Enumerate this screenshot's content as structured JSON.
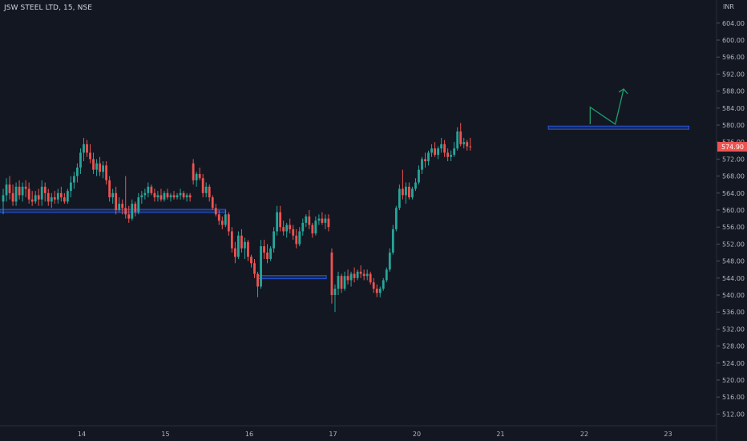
{
  "header": {
    "symbol": "JSW STEEL LTD",
    "interval": "15",
    "exchange": "NSE"
  },
  "colors": {
    "background": "#131722",
    "up": "#26a69a",
    "down": "#ef5350",
    "axis_text": "#b2b5be",
    "zone_line": "#2962ff",
    "arrow": "#1e9e6e",
    "price_tag": "#ef5350"
  },
  "chart_data": {
    "type": "candlestick",
    "currency_label": "INR",
    "last_price": "574.90",
    "ylim": [
      510,
      606
    ],
    "y_ticks": [
      "512.00",
      "516.00",
      "520.00",
      "524.00",
      "528.00",
      "532.00",
      "536.00",
      "540.00",
      "544.00",
      "548.00",
      "552.00",
      "556.00",
      "560.00",
      "564.00",
      "568.00",
      "572.00",
      "576.00",
      "580.00",
      "584.00",
      "588.00",
      "592.00",
      "596.00",
      "600.00",
      "604.00"
    ],
    "x_labels": [
      {
        "label": "14",
        "session": 0
      },
      {
        "label": "15",
        "session": 1
      },
      {
        "label": "16",
        "session": 2
      },
      {
        "label": "17",
        "session": 3
      },
      {
        "label": "20",
        "session": 4
      },
      {
        "label": "21",
        "session": 5
      },
      {
        "label": "22",
        "session": 6
      },
      {
        "label": "23",
        "session": 7
      }
    ],
    "levels": [
      {
        "price": 559.8,
        "from_session": -0.98,
        "to_session": 1.72
      },
      {
        "price": 544.2,
        "from_session": 2.1,
        "to_session": 2.92
      },
      {
        "price": 579.4,
        "from_session": 5.57,
        "to_session": 7.25
      }
    ],
    "arrow_path": [
      [
        6.07,
        580.2
      ],
      [
        6.07,
        584.2
      ],
      [
        6.37,
        580.2
      ],
      [
        6.47,
        588.5
      ]
    ],
    "candles": [
      [
        562.0,
        565.0,
        559.0,
        563.5
      ],
      [
        563.5,
        567.5,
        562.0,
        566.0
      ],
      [
        566.0,
        568.0,
        562.5,
        564.0
      ],
      [
        564.0,
        566.0,
        561.0,
        562.0
      ],
      [
        562.0,
        566.5,
        561.0,
        565.5
      ],
      [
        565.5,
        567.0,
        562.5,
        563.5
      ],
      [
        563.5,
        566.5,
        562.0,
        565.5
      ],
      [
        565.5,
        567.0,
        563.0,
        565.0
      ],
      [
        565.0,
        566.5,
        561.5,
        562.5
      ],
      [
        562.5,
        564.5,
        561.0,
        562.0
      ],
      [
        562.0,
        564.5,
        561.5,
        563.5
      ],
      [
        563.5,
        565.0,
        561.0,
        562.5
      ],
      [
        562.5,
        567.0,
        561.0,
        565.5
      ],
      [
        565.5,
        566.5,
        562.0,
        564.0
      ],
      [
        564.0,
        565.0,
        561.0,
        562.0
      ],
      [
        562.0,
        564.0,
        560.5,
        563.0
      ],
      [
        563.0,
        564.5,
        561.5,
        562.5
      ],
      [
        562.5,
        565.0,
        561.5,
        564.0
      ],
      [
        564.0,
        565.5,
        562.0,
        563.0
      ],
      [
        563.0,
        564.0,
        561.5,
        562.0
      ],
      [
        562.0,
        565.0,
        561.5,
        564.5
      ],
      [
        564.5,
        568.0,
        563.0,
        566.5
      ],
      [
        566.5,
        569.0,
        565.0,
        568.0
      ],
      [
        568.0,
        571.0,
        566.5,
        570.0
      ],
      [
        570.0,
        574.5,
        568.5,
        573.5
      ],
      [
        573.5,
        577.0,
        571.5,
        575.5
      ],
      [
        575.5,
        576.5,
        572.5,
        573.5
      ],
      [
        573.5,
        575.5,
        571.0,
        572.0
      ],
      [
        572.0,
        573.5,
        568.5,
        569.5
      ],
      [
        569.5,
        572.0,
        568.0,
        571.0
      ],
      [
        571.0,
        572.5,
        568.0,
        569.0
      ],
      [
        569.0,
        571.5,
        567.5,
        570.5
      ],
      [
        570.5,
        571.5,
        566.0,
        567.0
      ],
      [
        567.0,
        568.0,
        562.0,
        563.0
      ],
      [
        563.0,
        565.0,
        561.5,
        564.0
      ],
      [
        564.0,
        565.5,
        559.0,
        560.0
      ],
      [
        560.0,
        563.0,
        559.5,
        561.5
      ],
      [
        561.5,
        562.5,
        559.0,
        560.5
      ],
      [
        560.5,
        568.0,
        558.0,
        559.0
      ],
      [
        559.0,
        561.0,
        557.0,
        558.0
      ],
      [
        558.0,
        562.5,
        557.5,
        561.5
      ],
      [
        561.5,
        562.0,
        558.5,
        559.5
      ],
      [
        559.5,
        564.0,
        559.0,
        563.0
      ],
      [
        563.0,
        564.5,
        561.5,
        563.5
      ],
      [
        563.5,
        565.0,
        562.5,
        564.0
      ],
      [
        564.0,
        566.5,
        563.0,
        565.5
      ],
      [
        565.5,
        566.0,
        563.5,
        564.0
      ],
      [
        564.0,
        565.0,
        562.0,
        563.0
      ],
      [
        563.0,
        564.5,
        562.0,
        563.5
      ],
      [
        563.5,
        565.0,
        562.0,
        562.5
      ],
      [
        562.5,
        564.5,
        562.0,
        564.0
      ],
      [
        564.0,
        565.0,
        562.5,
        563.0
      ],
      [
        563.0,
        564.0,
        562.0,
        563.5
      ],
      [
        563.5,
        564.5,
        562.5,
        563.0
      ],
      [
        563.0,
        564.0,
        562.5,
        563.5
      ],
      [
        563.5,
        565.0,
        562.5,
        564.0
      ],
      [
        564.0,
        564.5,
        562.5,
        563.0
      ],
      [
        563.0,
        564.0,
        562.0,
        563.5
      ],
      [
        563.5,
        564.0,
        562.0,
        563.0
      ],
      [
        571.0,
        572.0,
        566.0,
        567.0
      ],
      [
        567.0,
        569.0,
        565.5,
        568.5
      ],
      [
        568.5,
        570.0,
        567.0,
        567.5
      ],
      [
        567.5,
        568.5,
        563.0,
        564.0
      ],
      [
        564.0,
        566.5,
        563.0,
        565.5
      ],
      [
        565.5,
        566.0,
        562.0,
        563.0
      ],
      [
        563.0,
        563.5,
        560.0,
        560.5
      ],
      [
        560.5,
        561.5,
        558.5,
        559.0
      ],
      [
        559.0,
        560.0,
        556.5,
        557.5
      ],
      [
        557.5,
        558.5,
        555.5,
        556.5
      ],
      [
        556.5,
        560.0,
        556.0,
        559.0
      ],
      [
        559.0,
        559.5,
        554.0,
        555.0
      ],
      [
        555.0,
        556.0,
        550.0,
        551.0
      ],
      [
        551.0,
        552.5,
        547.5,
        549.0
      ],
      [
        549.0,
        555.0,
        548.5,
        554.0
      ],
      [
        554.0,
        555.5,
        550.0,
        551.0
      ],
      [
        551.0,
        553.5,
        548.5,
        552.5
      ],
      [
        552.5,
        553.0,
        548.0,
        549.0
      ],
      [
        549.0,
        549.5,
        546.5,
        547.5
      ],
      [
        547.5,
        548.5,
        544.0,
        545.0
      ],
      [
        545.0,
        545.5,
        539.5,
        542.0
      ],
      [
        542.0,
        553.0,
        541.5,
        551.5
      ],
      [
        551.5,
        553.0,
        548.5,
        550.0
      ],
      [
        550.0,
        552.0,
        547.5,
        548.5
      ],
      [
        548.5,
        551.5,
        548.0,
        551.0
      ],
      [
        551.0,
        556.0,
        550.0,
        555.0
      ],
      [
        555.0,
        561.0,
        554.0,
        559.5
      ],
      [
        559.5,
        561.0,
        555.0,
        556.0
      ],
      [
        556.0,
        557.5,
        554.0,
        555.0
      ],
      [
        555.0,
        557.0,
        553.5,
        556.5
      ],
      [
        556.5,
        558.0,
        554.5,
        555.5
      ],
      [
        555.5,
        556.5,
        553.0,
        554.0
      ],
      [
        554.0,
        555.5,
        551.0,
        552.0
      ],
      [
        552.0,
        556.0,
        551.5,
        555.0
      ],
      [
        555.0,
        558.0,
        554.0,
        557.0
      ],
      [
        557.0,
        559.0,
        556.0,
        558.5
      ],
      [
        558.5,
        560.0,
        555.5,
        556.5
      ],
      [
        556.5,
        557.0,
        553.5,
        554.5
      ],
      [
        554.5,
        558.5,
        554.0,
        557.5
      ],
      [
        557.5,
        559.0,
        556.5,
        558.0
      ],
      [
        558.0,
        559.5,
        556.5,
        557.0
      ],
      [
        557.0,
        559.0,
        555.5,
        558.0
      ],
      [
        558.0,
        559.0,
        555.0,
        556.0
      ],
      [
        550.0,
        551.0,
        538.0,
        540.0
      ],
      [
        540.0,
        542.5,
        536.0,
        541.5
      ],
      [
        541.5,
        545.5,
        540.0,
        544.5
      ],
      [
        544.5,
        545.0,
        540.5,
        541.5
      ],
      [
        541.5,
        545.5,
        541.0,
        544.5
      ],
      [
        544.5,
        546.0,
        542.5,
        543.5
      ],
      [
        543.5,
        545.5,
        542.0,
        545.0
      ],
      [
        545.0,
        546.5,
        543.0,
        544.0
      ],
      [
        544.0,
        546.0,
        543.5,
        545.5
      ],
      [
        545.5,
        547.0,
        544.0,
        545.0
      ],
      [
        545.0,
        546.0,
        543.5,
        544.5
      ],
      [
        544.5,
        546.0,
        543.5,
        545.0
      ],
      [
        545.0,
        545.5,
        542.5,
        543.0
      ],
      [
        543.0,
        544.0,
        540.5,
        541.5
      ],
      [
        541.5,
        542.5,
        539.5,
        540.5
      ],
      [
        540.5,
        542.0,
        539.5,
        541.5
      ],
      [
        541.5,
        544.0,
        541.0,
        543.5
      ],
      [
        543.5,
        546.5,
        543.0,
        546.0
      ],
      [
        546.0,
        551.0,
        545.5,
        550.0
      ],
      [
        550.0,
        556.5,
        549.5,
        555.5
      ],
      [
        555.5,
        561.0,
        555.0,
        560.5
      ],
      [
        560.5,
        566.0,
        560.0,
        565.0
      ],
      [
        565.0,
        569.5,
        562.5,
        563.5
      ],
      [
        563.5,
        566.5,
        561.5,
        565.5
      ],
      [
        565.5,
        566.5,
        562.5,
        563.0
      ],
      [
        563.0,
        565.5,
        562.5,
        565.0
      ],
      [
        565.0,
        567.5,
        564.5,
        566.5
      ],
      [
        566.5,
        570.5,
        566.0,
        569.5
      ],
      [
        569.5,
        572.5,
        568.5,
        572.0
      ],
      [
        572.0,
        573.5,
        570.0,
        571.5
      ],
      [
        571.5,
        574.0,
        570.5,
        573.5
      ],
      [
        573.5,
        575.5,
        572.5,
        574.5
      ],
      [
        574.5,
        576.0,
        572.5,
        573.0
      ],
      [
        573.0,
        575.0,
        572.0,
        574.5
      ],
      [
        574.5,
        577.0,
        573.5,
        575.5
      ],
      [
        575.5,
        576.5,
        572.5,
        573.5
      ],
      [
        573.5,
        574.5,
        571.5,
        572.5
      ],
      [
        572.5,
        574.0,
        571.5,
        573.0
      ],
      [
        573.0,
        576.0,
        572.5,
        574.5
      ],
      [
        574.5,
        579.5,
        574.0,
        578.5
      ],
      [
        578.5,
        580.5,
        575.0,
        575.5
      ],
      [
        575.5,
        577.0,
        574.5,
        576.0
      ],
      [
        576.0,
        576.5,
        574.0,
        575.0
      ],
      [
        575.0,
        577.0,
        574.0,
        574.9
      ]
    ]
  }
}
